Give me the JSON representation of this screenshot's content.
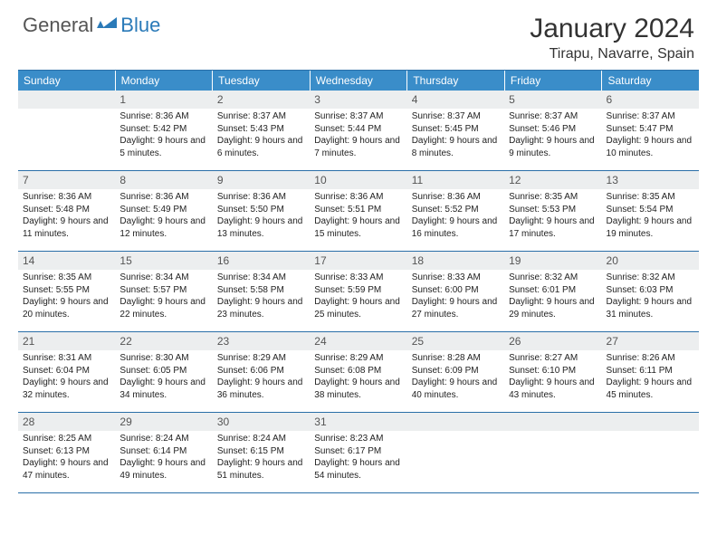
{
  "brand": {
    "part1": "General",
    "part2": "Blue"
  },
  "title": "January 2024",
  "location": "Tirapu, Navarre, Spain",
  "colors": {
    "header_bg": "#3a8dc9",
    "border": "#2a6fa8",
    "daynum_bg": "#eceeef",
    "text": "#222222",
    "brand_gray": "#555555",
    "brand_blue": "#2a7ab8"
  },
  "dow": [
    "Sunday",
    "Monday",
    "Tuesday",
    "Wednesday",
    "Thursday",
    "Friday",
    "Saturday"
  ],
  "weeks": [
    [
      {
        "n": "",
        "sr": "",
        "ss": "",
        "dl": ""
      },
      {
        "n": "1",
        "sr": "Sunrise: 8:36 AM",
        "ss": "Sunset: 5:42 PM",
        "dl": "Daylight: 9 hours and 5 minutes."
      },
      {
        "n": "2",
        "sr": "Sunrise: 8:37 AM",
        "ss": "Sunset: 5:43 PM",
        "dl": "Daylight: 9 hours and 6 minutes."
      },
      {
        "n": "3",
        "sr": "Sunrise: 8:37 AM",
        "ss": "Sunset: 5:44 PM",
        "dl": "Daylight: 9 hours and 7 minutes."
      },
      {
        "n": "4",
        "sr": "Sunrise: 8:37 AM",
        "ss": "Sunset: 5:45 PM",
        "dl": "Daylight: 9 hours and 8 minutes."
      },
      {
        "n": "5",
        "sr": "Sunrise: 8:37 AM",
        "ss": "Sunset: 5:46 PM",
        "dl": "Daylight: 9 hours and 9 minutes."
      },
      {
        "n": "6",
        "sr": "Sunrise: 8:37 AM",
        "ss": "Sunset: 5:47 PM",
        "dl": "Daylight: 9 hours and 10 minutes."
      }
    ],
    [
      {
        "n": "7",
        "sr": "Sunrise: 8:36 AM",
        "ss": "Sunset: 5:48 PM",
        "dl": "Daylight: 9 hours and 11 minutes."
      },
      {
        "n": "8",
        "sr": "Sunrise: 8:36 AM",
        "ss": "Sunset: 5:49 PM",
        "dl": "Daylight: 9 hours and 12 minutes."
      },
      {
        "n": "9",
        "sr": "Sunrise: 8:36 AM",
        "ss": "Sunset: 5:50 PM",
        "dl": "Daylight: 9 hours and 13 minutes."
      },
      {
        "n": "10",
        "sr": "Sunrise: 8:36 AM",
        "ss": "Sunset: 5:51 PM",
        "dl": "Daylight: 9 hours and 15 minutes."
      },
      {
        "n": "11",
        "sr": "Sunrise: 8:36 AM",
        "ss": "Sunset: 5:52 PM",
        "dl": "Daylight: 9 hours and 16 minutes."
      },
      {
        "n": "12",
        "sr": "Sunrise: 8:35 AM",
        "ss": "Sunset: 5:53 PM",
        "dl": "Daylight: 9 hours and 17 minutes."
      },
      {
        "n": "13",
        "sr": "Sunrise: 8:35 AM",
        "ss": "Sunset: 5:54 PM",
        "dl": "Daylight: 9 hours and 19 minutes."
      }
    ],
    [
      {
        "n": "14",
        "sr": "Sunrise: 8:35 AM",
        "ss": "Sunset: 5:55 PM",
        "dl": "Daylight: 9 hours and 20 minutes."
      },
      {
        "n": "15",
        "sr": "Sunrise: 8:34 AM",
        "ss": "Sunset: 5:57 PM",
        "dl": "Daylight: 9 hours and 22 minutes."
      },
      {
        "n": "16",
        "sr": "Sunrise: 8:34 AM",
        "ss": "Sunset: 5:58 PM",
        "dl": "Daylight: 9 hours and 23 minutes."
      },
      {
        "n": "17",
        "sr": "Sunrise: 8:33 AM",
        "ss": "Sunset: 5:59 PM",
        "dl": "Daylight: 9 hours and 25 minutes."
      },
      {
        "n": "18",
        "sr": "Sunrise: 8:33 AM",
        "ss": "Sunset: 6:00 PM",
        "dl": "Daylight: 9 hours and 27 minutes."
      },
      {
        "n": "19",
        "sr": "Sunrise: 8:32 AM",
        "ss": "Sunset: 6:01 PM",
        "dl": "Daylight: 9 hours and 29 minutes."
      },
      {
        "n": "20",
        "sr": "Sunrise: 8:32 AM",
        "ss": "Sunset: 6:03 PM",
        "dl": "Daylight: 9 hours and 31 minutes."
      }
    ],
    [
      {
        "n": "21",
        "sr": "Sunrise: 8:31 AM",
        "ss": "Sunset: 6:04 PM",
        "dl": "Daylight: 9 hours and 32 minutes."
      },
      {
        "n": "22",
        "sr": "Sunrise: 8:30 AM",
        "ss": "Sunset: 6:05 PM",
        "dl": "Daylight: 9 hours and 34 minutes."
      },
      {
        "n": "23",
        "sr": "Sunrise: 8:29 AM",
        "ss": "Sunset: 6:06 PM",
        "dl": "Daylight: 9 hours and 36 minutes."
      },
      {
        "n": "24",
        "sr": "Sunrise: 8:29 AM",
        "ss": "Sunset: 6:08 PM",
        "dl": "Daylight: 9 hours and 38 minutes."
      },
      {
        "n": "25",
        "sr": "Sunrise: 8:28 AM",
        "ss": "Sunset: 6:09 PM",
        "dl": "Daylight: 9 hours and 40 minutes."
      },
      {
        "n": "26",
        "sr": "Sunrise: 8:27 AM",
        "ss": "Sunset: 6:10 PM",
        "dl": "Daylight: 9 hours and 43 minutes."
      },
      {
        "n": "27",
        "sr": "Sunrise: 8:26 AM",
        "ss": "Sunset: 6:11 PM",
        "dl": "Daylight: 9 hours and 45 minutes."
      }
    ],
    [
      {
        "n": "28",
        "sr": "Sunrise: 8:25 AM",
        "ss": "Sunset: 6:13 PM",
        "dl": "Daylight: 9 hours and 47 minutes."
      },
      {
        "n": "29",
        "sr": "Sunrise: 8:24 AM",
        "ss": "Sunset: 6:14 PM",
        "dl": "Daylight: 9 hours and 49 minutes."
      },
      {
        "n": "30",
        "sr": "Sunrise: 8:24 AM",
        "ss": "Sunset: 6:15 PM",
        "dl": "Daylight: 9 hours and 51 minutes."
      },
      {
        "n": "31",
        "sr": "Sunrise: 8:23 AM",
        "ss": "Sunset: 6:17 PM",
        "dl": "Daylight: 9 hours and 54 minutes."
      },
      {
        "n": "",
        "sr": "",
        "ss": "",
        "dl": ""
      },
      {
        "n": "",
        "sr": "",
        "ss": "",
        "dl": ""
      },
      {
        "n": "",
        "sr": "",
        "ss": "",
        "dl": ""
      }
    ]
  ]
}
